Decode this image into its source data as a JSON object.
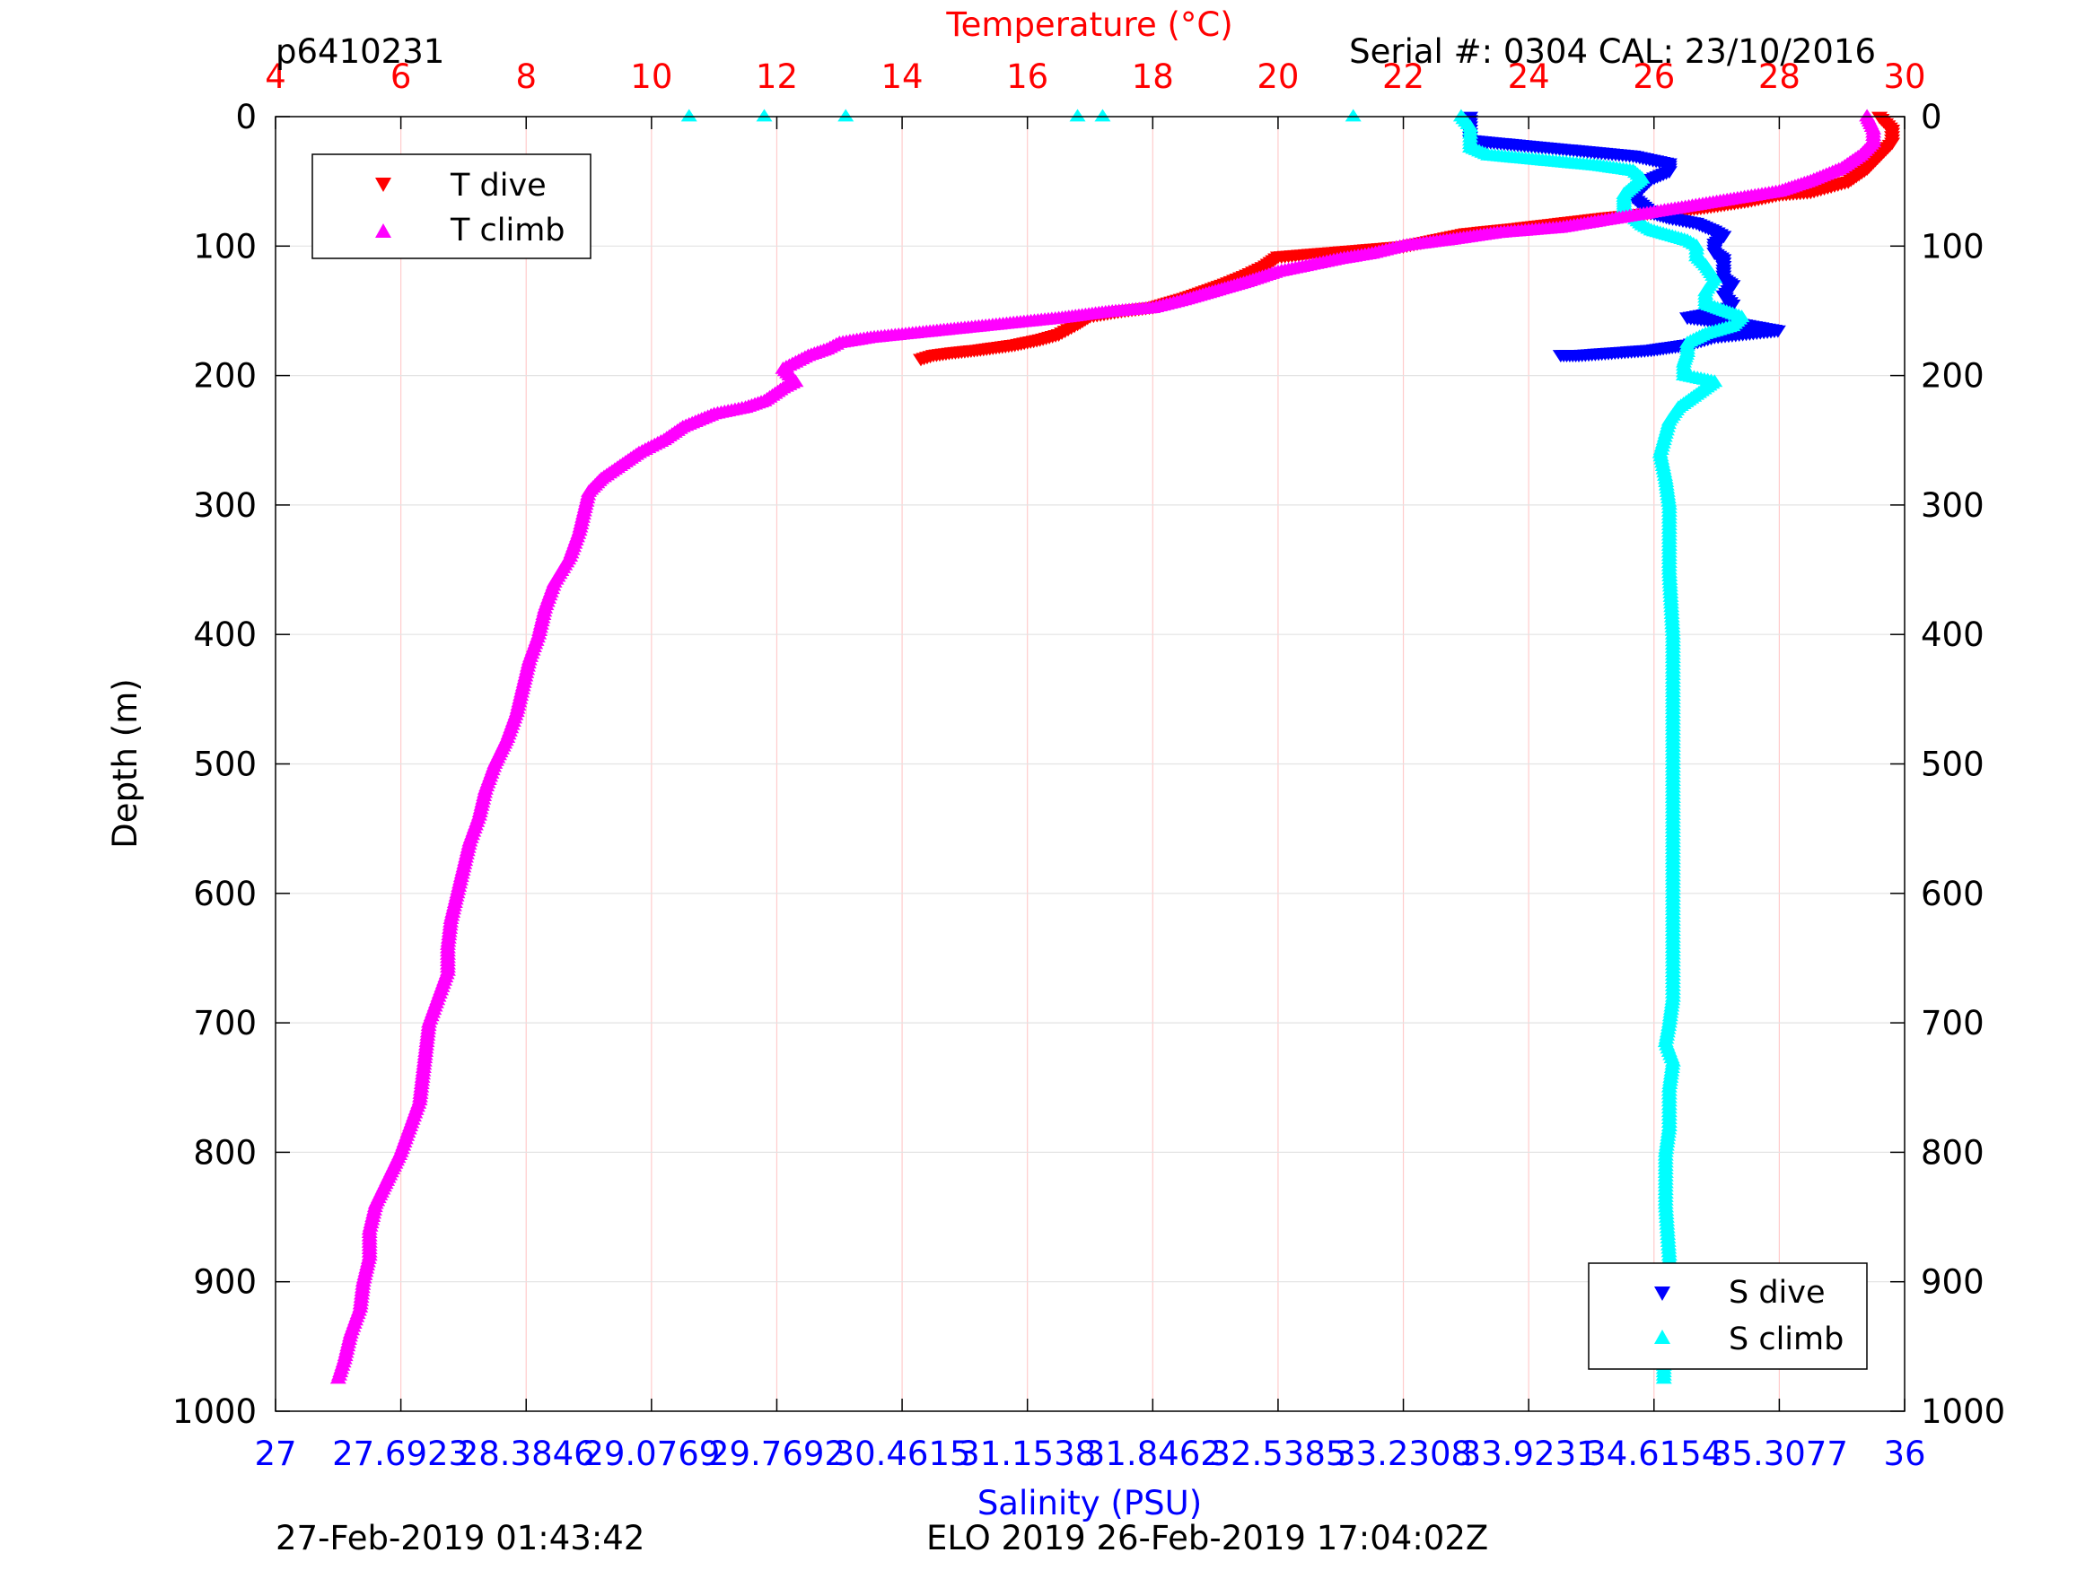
{
  "header": {
    "profile_id": "p6410231",
    "serial_info": "Serial #: 0304  CAL: 23/10/2016"
  },
  "footer": {
    "left_timestamp": "27-Feb-2019 01:43:42",
    "mission_info": "ELO 2019 26-Feb-2019 17:04:02Z"
  },
  "colors": {
    "temperature_axis": "#ff0000",
    "salinity_axis": "#0000ff",
    "t_dive": "#ff0000",
    "t_climb": "#ff00ff",
    "s_dive": "#0000ff",
    "s_climb": "#00ffff",
    "grid": "#ffcccc"
  },
  "chart_data": {
    "type": "scatter",
    "axes": {
      "y": {
        "label": "Depth (m)",
        "lim": [
          0,
          1000
        ],
        "reversed": true,
        "ticks": [
          0,
          100,
          200,
          300,
          400,
          500,
          600,
          700,
          800,
          900,
          1000
        ],
        "tick_labels": [
          "0",
          "100",
          "200",
          "300",
          "400",
          "500",
          "600",
          "700",
          "800",
          "900",
          "1000"
        ],
        "mirrored_right": true
      },
      "x_top": {
        "label": "Temperature (°C)",
        "lim": [
          4,
          30
        ],
        "ticks": [
          4,
          6,
          8,
          10,
          12,
          14,
          16,
          18,
          20,
          22,
          24,
          26,
          28,
          30
        ],
        "tick_labels": [
          "4",
          "6",
          "8",
          "10",
          "12",
          "14",
          "16",
          "18",
          "20",
          "22",
          "24",
          "26",
          "28",
          "30"
        ]
      },
      "x_bottom": {
        "label": "Salinity (PSU)",
        "lim": [
          27,
          36
        ],
        "ticks": [
          27,
          27.6923,
          28.3846,
          29.0769,
          29.7692,
          30.4615,
          31.1538,
          31.8462,
          32.5385,
          33.2308,
          33.9231,
          34.6154,
          35.3077,
          36
        ],
        "tick_labels": [
          "27",
          "27.6923",
          "28.3846",
          "29.0769",
          "29.7692",
          "30.4615",
          "31.1538",
          "31.8462",
          "32.5385",
          "33.2308",
          "33.9231",
          "34.6154",
          "35.3077",
          "36"
        ]
      },
      "grid": true
    },
    "legends": [
      {
        "position": "top-left",
        "entries": [
          "T dive",
          "T climb"
        ]
      },
      {
        "position": "bottom-right",
        "entries": [
          "S dive",
          "S climb"
        ]
      }
    ],
    "series": [
      {
        "name": "T dive",
        "axis": "temperature",
        "marker": "triangle-down",
        "color": "#ff0000",
        "points": [
          [
            29.6,
            0
          ],
          [
            29.8,
            10
          ],
          [
            29.8,
            20
          ],
          [
            29.6,
            30
          ],
          [
            29.4,
            40
          ],
          [
            29.1,
            50
          ],
          [
            28.5,
            58
          ],
          [
            28.0,
            60
          ],
          [
            27.5,
            65
          ],
          [
            26.8,
            70
          ],
          [
            26.0,
            74
          ],
          [
            25.2,
            78
          ],
          [
            24.5,
            82
          ],
          [
            23.8,
            86
          ],
          [
            23.0,
            90
          ],
          [
            22.5,
            95
          ],
          [
            22.0,
            100
          ],
          [
            21.0,
            104
          ],
          [
            20.0,
            108
          ],
          [
            19.8,
            115
          ],
          [
            19.5,
            122
          ],
          [
            19.2,
            128
          ],
          [
            18.8,
            135
          ],
          [
            18.5,
            140
          ],
          [
            18.0,
            147
          ],
          [
            17.5,
            150
          ],
          [
            17.0,
            154
          ],
          [
            16.8,
            160
          ],
          [
            16.5,
            168
          ],
          [
            16.2,
            172
          ],
          [
            15.8,
            176
          ],
          [
            15.5,
            178
          ],
          [
            15.2,
            180
          ],
          [
            14.8,
            182
          ],
          [
            14.5,
            184
          ],
          [
            14.3,
            187
          ]
        ]
      },
      {
        "name": "T climb",
        "axis": "temperature",
        "marker": "triangle-up",
        "color": "#ff00ff",
        "points": [
          [
            29.4,
            0
          ],
          [
            29.5,
            10
          ],
          [
            29.5,
            20
          ],
          [
            29.3,
            30
          ],
          [
            29.0,
            40
          ],
          [
            28.5,
            50
          ],
          [
            28.0,
            58
          ],
          [
            27.5,
            62
          ],
          [
            27.0,
            66
          ],
          [
            26.5,
            70
          ],
          [
            26.0,
            74
          ],
          [
            25.5,
            78
          ],
          [
            25.0,
            82
          ],
          [
            24.5,
            86
          ],
          [
            23.5,
            90
          ],
          [
            22.8,
            95
          ],
          [
            22.0,
            100
          ],
          [
            21.5,
            106
          ],
          [
            21.0,
            110
          ],
          [
            20.5,
            115
          ],
          [
            20.0,
            120
          ],
          [
            19.5,
            128
          ],
          [
            19.0,
            135
          ],
          [
            18.5,
            142
          ],
          [
            18.0,
            148
          ],
          [
            17.3,
            151
          ],
          [
            16.5,
            156
          ],
          [
            15.5,
            161
          ],
          [
            14.5,
            166
          ],
          [
            13.5,
            171
          ],
          [
            13.0,
            175
          ],
          [
            12.8,
            180
          ],
          [
            12.5,
            185
          ],
          [
            12.3,
            190
          ],
          [
            12.1,
            195
          ],
          [
            12.2,
            200
          ],
          [
            12.3,
            205
          ],
          [
            12.1,
            210
          ],
          [
            11.8,
            220
          ],
          [
            11.5,
            225
          ],
          [
            11.0,
            230
          ],
          [
            10.5,
            240
          ],
          [
            10.2,
            250
          ],
          [
            9.8,
            260
          ],
          [
            9.5,
            270
          ],
          [
            9.2,
            280
          ],
          [
            9.0,
            290
          ],
          [
            8.95,
            300
          ],
          [
            8.85,
            320
          ],
          [
            8.7,
            340
          ],
          [
            8.45,
            360
          ],
          [
            8.3,
            380
          ],
          [
            8.2,
            400
          ],
          [
            8.05,
            420
          ],
          [
            7.95,
            440
          ],
          [
            7.85,
            460
          ],
          [
            7.7,
            480
          ],
          [
            7.5,
            500
          ],
          [
            7.35,
            520
          ],
          [
            7.25,
            540
          ],
          [
            7.1,
            560
          ],
          [
            7.0,
            580
          ],
          [
            6.9,
            600
          ],
          [
            6.8,
            620
          ],
          [
            6.75,
            640
          ],
          [
            6.75,
            660
          ],
          [
            6.6,
            680
          ],
          [
            6.45,
            700
          ],
          [
            6.4,
            720
          ],
          [
            6.35,
            740
          ],
          [
            6.3,
            760
          ],
          [
            6.15,
            780
          ],
          [
            6.0,
            800
          ],
          [
            5.8,
            820
          ],
          [
            5.6,
            840
          ],
          [
            5.5,
            860
          ],
          [
            5.5,
            880
          ],
          [
            5.4,
            900
          ],
          [
            5.35,
            920
          ],
          [
            5.2,
            940
          ],
          [
            5.1,
            960
          ],
          [
            5.0,
            975
          ]
        ]
      },
      {
        "name": "S dive",
        "axis": "salinity",
        "marker": "triangle-down",
        "color": "#0000ff",
        "points": [
          [
            33.6,
            0
          ],
          [
            33.6,
            10
          ],
          [
            33.6,
            18
          ],
          [
            33.9,
            22
          ],
          [
            34.5,
            30
          ],
          [
            34.7,
            36
          ],
          [
            34.7,
            42
          ],
          [
            34.6,
            48
          ],
          [
            34.55,
            55
          ],
          [
            34.5,
            62
          ],
          [
            34.55,
            68
          ],
          [
            34.6,
            74
          ],
          [
            34.7,
            78
          ],
          [
            34.85,
            82
          ],
          [
            34.95,
            88
          ],
          [
            35.0,
            92
          ],
          [
            34.95,
            98
          ],
          [
            34.95,
            105
          ],
          [
            35.0,
            110
          ],
          [
            35.0,
            118
          ],
          [
            35.0,
            125
          ],
          [
            35.05,
            130
          ],
          [
            35.0,
            138
          ],
          [
            35.05,
            145
          ],
          [
            35.0,
            150
          ],
          [
            34.8,
            155
          ],
          [
            35.1,
            160
          ],
          [
            35.3,
            165
          ],
          [
            34.95,
            170
          ],
          [
            34.8,
            176
          ],
          [
            34.7,
            178
          ],
          [
            34.6,
            180
          ],
          [
            34.4,
            182
          ],
          [
            34.2,
            184
          ],
          [
            34.1,
            184
          ]
        ]
      },
      {
        "name": "S climb",
        "axis": "salinity",
        "marker": "triangle-up",
        "color": "#00ffff",
        "points": [
          [
            33.55,
            0
          ],
          [
            33.6,
            8
          ],
          [
            33.6,
            16
          ],
          [
            33.6,
            24
          ],
          [
            33.7,
            30
          ],
          [
            34.0,
            34
          ],
          [
            34.3,
            38
          ],
          [
            34.5,
            42
          ],
          [
            34.55,
            48
          ],
          [
            34.5,
            54
          ],
          [
            34.45,
            60
          ],
          [
            34.45,
            66
          ],
          [
            34.45,
            72
          ],
          [
            34.5,
            78
          ],
          [
            34.55,
            84
          ],
          [
            34.6,
            88
          ],
          [
            34.7,
            92
          ],
          [
            34.8,
            96
          ],
          [
            34.85,
            100
          ],
          [
            34.85,
            108
          ],
          [
            34.9,
            115
          ],
          [
            34.95,
            125
          ],
          [
            34.9,
            135
          ],
          [
            34.9,
            145
          ],
          [
            35.0,
            150
          ],
          [
            35.1,
            155
          ],
          [
            35.05,
            162
          ],
          [
            34.9,
            168
          ],
          [
            34.8,
            175
          ],
          [
            34.8,
            182
          ],
          [
            34.78,
            190
          ],
          [
            34.78,
            200
          ],
          [
            34.95,
            205
          ],
          [
            34.85,
            215
          ],
          [
            34.75,
            225
          ],
          [
            34.7,
            235
          ],
          [
            34.68,
            245
          ],
          [
            34.65,
            260
          ],
          [
            34.68,
            280
          ],
          [
            34.7,
            300
          ],
          [
            34.7,
            350
          ],
          [
            34.72,
            400
          ],
          [
            34.72,
            450
          ],
          [
            34.72,
            500
          ],
          [
            34.72,
            550
          ],
          [
            34.72,
            600
          ],
          [
            34.72,
            650
          ],
          [
            34.72,
            680
          ],
          [
            34.7,
            700
          ],
          [
            34.68,
            715
          ],
          [
            34.72,
            730
          ],
          [
            34.7,
            750
          ],
          [
            34.7,
            780
          ],
          [
            34.68,
            800
          ],
          [
            34.68,
            840
          ],
          [
            34.7,
            880
          ],
          [
            34.7,
            900
          ],
          [
            34.68,
            920
          ],
          [
            34.67,
            940
          ],
          [
            34.67,
            960
          ],
          [
            34.67,
            975
          ]
        ]
      },
      {
        "name": "",
        "axis": "temperature",
        "marker": "triangle-up",
        "color": "#00ffff",
        "note_visible": "surface points",
        "points": [
          [
            10.6,
            0
          ],
          [
            11.8,
            0
          ],
          [
            13.1,
            0
          ],
          [
            16.8,
            0
          ],
          [
            17.2,
            0
          ],
          [
            21.2,
            0
          ]
        ]
      }
    ]
  }
}
